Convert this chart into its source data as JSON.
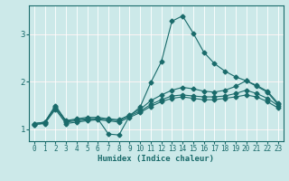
{
  "title": "",
  "xlabel": "Humidex (Indice chaleur)",
  "ylabel": "",
  "bg_color": "#cce9e9",
  "grid_color": "#ffffff",
  "grid_color_red": "#e8b0b0",
  "line_color": "#1a6b6b",
  "xlim": [
    -0.5,
    23.5
  ],
  "ylim": [
    0.75,
    3.6
  ],
  "xticks": [
    0,
    1,
    2,
    3,
    4,
    5,
    6,
    7,
    8,
    9,
    10,
    11,
    12,
    13,
    14,
    15,
    16,
    17,
    18,
    19,
    20,
    21,
    22,
    23
  ],
  "yticks": [
    1,
    2,
    3
  ],
  "line1_x": [
    0,
    1,
    2,
    3,
    4,
    5,
    6,
    7,
    8,
    9,
    10,
    11,
    12,
    13,
    14,
    15,
    16,
    17,
    18,
    19,
    20,
    21,
    22,
    23
  ],
  "line1_y": [
    1.12,
    1.15,
    1.5,
    1.17,
    1.2,
    1.22,
    1.22,
    0.9,
    0.88,
    1.28,
    1.47,
    1.98,
    2.42,
    3.27,
    3.38,
    3.02,
    2.62,
    2.38,
    2.22,
    2.1,
    2.02,
    1.9,
    1.78,
    1.52
  ],
  "line2_x": [
    0,
    1,
    2,
    3,
    4,
    5,
    6,
    7,
    8,
    9,
    10,
    11,
    12,
    13,
    14,
    15,
    16,
    17,
    18,
    19,
    20,
    21,
    22,
    23
  ],
  "line2_y": [
    1.12,
    1.15,
    1.48,
    1.18,
    1.22,
    1.25,
    1.25,
    1.22,
    1.2,
    1.3,
    1.42,
    1.6,
    1.72,
    1.82,
    1.88,
    1.85,
    1.8,
    1.78,
    1.82,
    1.9,
    2.02,
    1.92,
    1.8,
    1.55
  ],
  "line3_x": [
    0,
    1,
    2,
    3,
    4,
    5,
    6,
    7,
    8,
    9,
    10,
    11,
    12,
    13,
    14,
    15,
    16,
    17,
    18,
    19,
    20,
    21,
    22,
    23
  ],
  "line3_y": [
    1.1,
    1.13,
    1.45,
    1.15,
    1.18,
    1.2,
    1.22,
    1.2,
    1.18,
    1.28,
    1.38,
    1.52,
    1.62,
    1.7,
    1.72,
    1.7,
    1.68,
    1.68,
    1.7,
    1.75,
    1.82,
    1.75,
    1.65,
    1.5
  ],
  "line4_x": [
    0,
    1,
    2,
    3,
    4,
    5,
    6,
    7,
    8,
    9,
    10,
    11,
    12,
    13,
    14,
    15,
    16,
    17,
    18,
    19,
    20,
    21,
    22,
    23
  ],
  "line4_y": [
    1.1,
    1.12,
    1.42,
    1.12,
    1.15,
    1.18,
    1.2,
    1.18,
    1.15,
    1.25,
    1.35,
    1.48,
    1.58,
    1.65,
    1.68,
    1.65,
    1.62,
    1.62,
    1.65,
    1.68,
    1.72,
    1.68,
    1.58,
    1.45
  ],
  "lw": 0.8,
  "ms": 2.5,
  "xlabel_fontsize": 6.5,
  "tick_fontsize": 5.5
}
